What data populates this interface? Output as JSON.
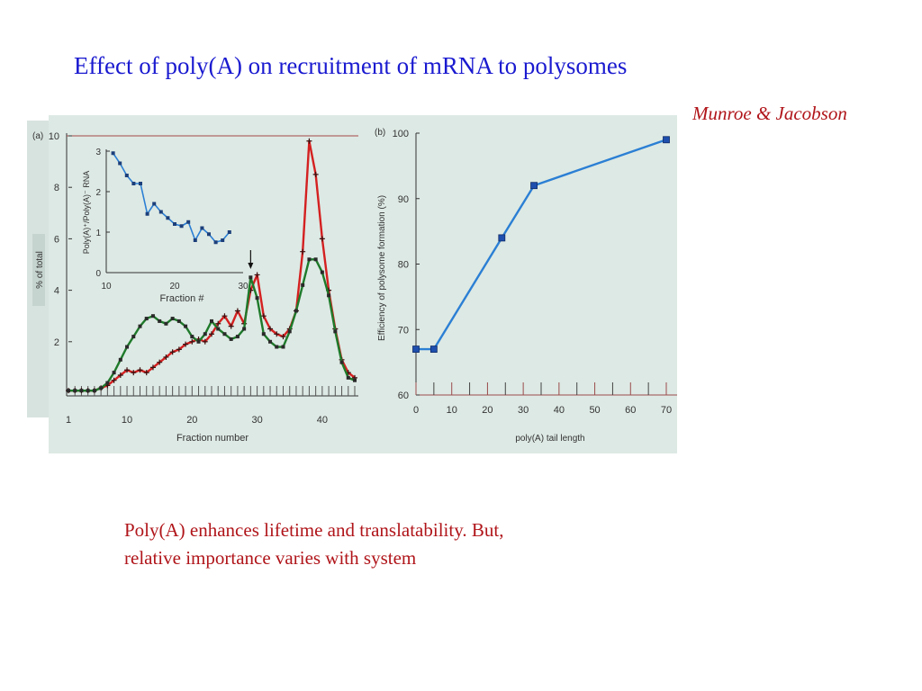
{
  "slide": {
    "title": "Effect of poly(A) on recruitment of mRNA to polysomes",
    "credit": "Munroe & Jacobson",
    "caption_line1": "Poly(A) enhances  lifetime and   translatability.  But,",
    "caption_line2": "relative importance varies with system"
  },
  "colors": {
    "title": "#1a1ad0",
    "credit": "#b0151a",
    "caption": "#b0151a",
    "panel_background": "#dde9e4",
    "red_series": "#d42020",
    "green_series": "#1e7a2a",
    "blue_series": "#2b7fd4"
  },
  "chart_data": [
    {
      "type": "line",
      "panel_label": "(a)",
      "xlabel": "Fraction number",
      "ylabel": "% of total",
      "xlim": [
        1,
        45
      ],
      "ylim": [
        0,
        10
      ],
      "x_ticks": [
        1,
        10,
        20,
        30,
        40
      ],
      "y_ticks": [
        2,
        4,
        6,
        8,
        10
      ],
      "arrow_at_fraction": 29,
      "series": [
        {
          "color": "red",
          "x": [
            1,
            2,
            3,
            4,
            5,
            6,
            7,
            8,
            9,
            10,
            11,
            12,
            13,
            14,
            15,
            16,
            17,
            18,
            19,
            20,
            21,
            22,
            23,
            24,
            25,
            26,
            27,
            28,
            29,
            30,
            31,
            32,
            33,
            34,
            35,
            36,
            37,
            38,
            39,
            40,
            41,
            42,
            43,
            44,
            45
          ],
          "y": [
            0.1,
            0.1,
            0.1,
            0.1,
            0.1,
            0.2,
            0.3,
            0.5,
            0.7,
            0.9,
            0.8,
            0.9,
            0.8,
            1.0,
            1.2,
            1.4,
            1.6,
            1.7,
            1.9,
            2.0,
            2.1,
            2.0,
            2.3,
            2.7,
            3.0,
            2.6,
            3.2,
            2.7,
            4.0,
            4.6,
            3.0,
            2.5,
            2.3,
            2.2,
            2.5,
            3.2,
            5.5,
            9.8,
            8.5,
            6.0,
            4.0,
            2.5,
            1.3,
            0.8,
            0.6
          ]
        },
        {
          "color": "green",
          "x": [
            1,
            2,
            3,
            4,
            5,
            6,
            7,
            8,
            9,
            10,
            11,
            12,
            13,
            14,
            15,
            16,
            17,
            18,
            19,
            20,
            21,
            22,
            23,
            24,
            25,
            26,
            27,
            28,
            29,
            30,
            31,
            32,
            33,
            34,
            35,
            36,
            37,
            38,
            39,
            40,
            41,
            42,
            43,
            44,
            45
          ],
          "y": [
            0.1,
            0.1,
            0.1,
            0.1,
            0.1,
            0.2,
            0.4,
            0.8,
            1.3,
            1.8,
            2.2,
            2.6,
            2.9,
            3.0,
            2.8,
            2.7,
            2.9,
            2.8,
            2.6,
            2.2,
            2.0,
            2.3,
            2.8,
            2.5,
            2.3,
            2.1,
            2.2,
            2.5,
            4.5,
            3.7,
            2.3,
            2.0,
            1.8,
            1.8,
            2.4,
            3.2,
            4.2,
            5.2,
            5.2,
            4.7,
            3.8,
            2.4,
            1.2,
            0.6,
            0.5
          ]
        }
      ]
    },
    {
      "type": "line",
      "panel_label": "inset",
      "xlabel": "Fraction #",
      "ylabel": "Poly(A)⁺/Poly(A)⁻ RNA",
      "xlim": [
        10,
        30
      ],
      "ylim": [
        0,
        3
      ],
      "x_ticks": [
        10,
        20,
        30
      ],
      "y_ticks": [
        0,
        1,
        2,
        3
      ],
      "series": [
        {
          "color": "blue",
          "x": [
            11,
            12,
            13,
            14,
            15,
            16,
            17,
            18,
            19,
            20,
            21,
            22,
            23,
            24,
            25,
            26,
            27,
            28
          ],
          "y": [
            2.95,
            2.7,
            2.4,
            2.2,
            2.2,
            1.45,
            1.7,
            1.5,
            1.35,
            1.2,
            1.15,
            1.25,
            0.8,
            1.1,
            0.95,
            0.75,
            0.8,
            1.0
          ]
        }
      ]
    },
    {
      "type": "line",
      "panel_label": "(b)",
      "xlabel": "poly(A) tail length",
      "ylabel": "Efficiency of polysome formation (%)",
      "xlim": [
        0,
        70
      ],
      "ylim": [
        60,
        100
      ],
      "x_ticks": [
        0,
        10,
        20,
        30,
        40,
        50,
        60,
        70
      ],
      "y_ticks": [
        60,
        70,
        80,
        90,
        100
      ],
      "series": [
        {
          "color": "blue",
          "x": [
            0,
            5,
            24,
            33,
            70
          ],
          "y": [
            67,
            67,
            84,
            92,
            99
          ]
        }
      ]
    }
  ]
}
